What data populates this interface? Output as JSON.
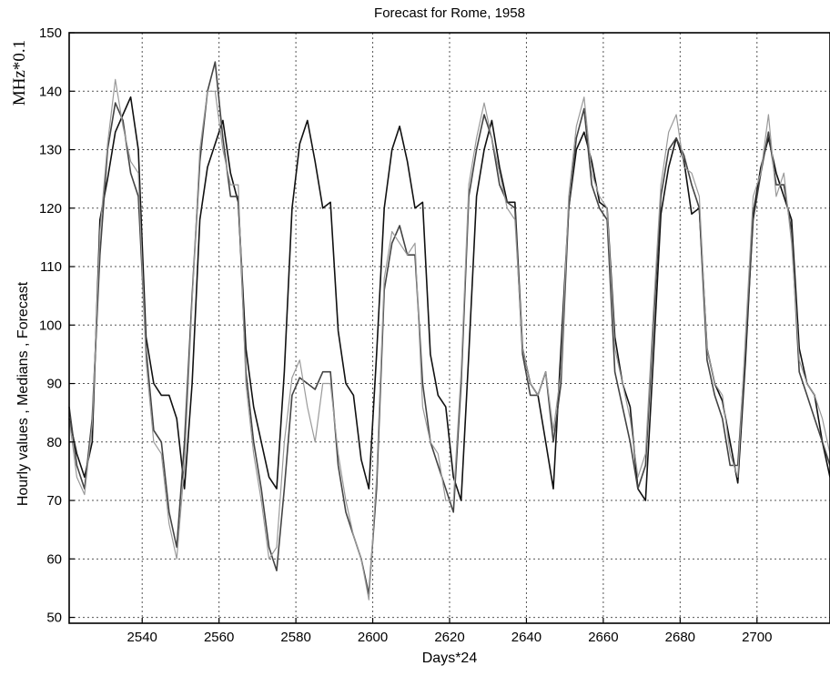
{
  "chart_data": {
    "type": "line",
    "title": "Forecast for Rome, 1958",
    "xlabel": "Days*24",
    "ylabel": "Hourly values , Medians , Forecast",
    "unit_label": "MHz*0.1",
    "xlim": [
      2521,
      2719
    ],
    "ylim": [
      49,
      150
    ],
    "x_ticks": [
      2540,
      2560,
      2580,
      2600,
      2620,
      2640,
      2660,
      2680,
      2700
    ],
    "y_ticks": [
      50,
      60,
      70,
      80,
      90,
      100,
      110,
      120,
      130,
      140,
      150
    ],
    "grid": true,
    "series": [
      {
        "color": "#111111",
        "x": [
          2521,
          2523,
          2525,
          2527,
          2529,
          2531,
          2533,
          2535,
          2537,
          2539,
          2541,
          2543,
          2545,
          2547,
          2549,
          2551,
          2553,
          2555,
          2557,
          2559,
          2561,
          2563,
          2565,
          2567,
          2569,
          2571,
          2573,
          2575,
          2577,
          2579,
          2581,
          2583,
          2585,
          2587,
          2589,
          2591,
          2593,
          2595,
          2597,
          2599,
          2601,
          2603,
          2605,
          2607,
          2609,
          2611,
          2613,
          2615,
          2617,
          2619,
          2621,
          2623,
          2625,
          2627,
          2629,
          2631,
          2633,
          2635,
          2637,
          2639,
          2641,
          2643,
          2645,
          2647,
          2649,
          2651,
          2653,
          2655,
          2657,
          2659,
          2661,
          2663,
          2665,
          2667,
          2669,
          2671,
          2673,
          2675,
          2677,
          2679,
          2681,
          2683,
          2685,
          2687,
          2689,
          2691,
          2693,
          2695,
          2697,
          2699,
          2701,
          2703,
          2705,
          2707,
          2709,
          2711,
          2713,
          2715,
          2717,
          2719
        ],
        "values": [
          84,
          78,
          74,
          80,
          118,
          125,
          133,
          136,
          139,
          130,
          98,
          90,
          88,
          88,
          84,
          72,
          90,
          118,
          127,
          131,
          135,
          126,
          121,
          96,
          86,
          80,
          74,
          72,
          92,
          120,
          131,
          135,
          128,
          120,
          121,
          99,
          90,
          88,
          77,
          72,
          95,
          120,
          130,
          134,
          128,
          120,
          121,
          95,
          88,
          86,
          74,
          70,
          95,
          122,
          130,
          135,
          127,
          121,
          121,
          96,
          90,
          88,
          80,
          72,
          96,
          120,
          130,
          133,
          128,
          121,
          120,
          98,
          90,
          86,
          72,
          70,
          94,
          119,
          127,
          132,
          128,
          119,
          120,
          96,
          90,
          87,
          80,
          73,
          94,
          119,
          127,
          132,
          126,
          122,
          118,
          96,
          90,
          88,
          80,
          74
        ]
      },
      {
        "color": "#444444",
        "x": [
          2521,
          2523,
          2525,
          2527,
          2529,
          2531,
          2533,
          2535,
          2537,
          2539,
          2541,
          2543,
          2545,
          2547,
          2549,
          2551,
          2553,
          2555,
          2557,
          2559,
          2561,
          2563,
          2565,
          2567,
          2569,
          2571,
          2573,
          2575,
          2577,
          2579,
          2581,
          2583,
          2585,
          2587,
          2589,
          2591,
          2593,
          2595,
          2597,
          2599,
          2601,
          2603,
          2605,
          2607,
          2609,
          2611,
          2613,
          2615,
          2617,
          2619,
          2621,
          2623,
          2625,
          2627,
          2629,
          2631,
          2633,
          2635,
          2637,
          2639,
          2641,
          2643,
          2645,
          2647,
          2649,
          2651,
          2653,
          2655,
          2657,
          2659,
          2661,
          2663,
          2665,
          2667,
          2669,
          2671,
          2673,
          2675,
          2677,
          2679,
          2681,
          2683,
          2685,
          2687,
          2689,
          2691,
          2693,
          2695,
          2697,
          2699,
          2701,
          2703,
          2705,
          2707,
          2709,
          2711,
          2713,
          2715,
          2717,
          2719
        ],
        "values": [
          86,
          76,
          72,
          84,
          112,
          130,
          138,
          135,
          126,
          122,
          96,
          82,
          80,
          68,
          62,
          80,
          105,
          128,
          140,
          145,
          132,
          122,
          122,
          92,
          80,
          72,
          62,
          58,
          72,
          88,
          91,
          90,
          89,
          92,
          92,
          76,
          68,
          64,
          60,
          54,
          72,
          106,
          114,
          117,
          112,
          112,
          90,
          80,
          76,
          72,
          68,
          90,
          122,
          130,
          136,
          132,
          124,
          121,
          120,
          95,
          88,
          88,
          92,
          80,
          90,
          120,
          132,
          137,
          124,
          120,
          118,
          92,
          86,
          80,
          72,
          76,
          100,
          122,
          130,
          132,
          129,
          124,
          120,
          94,
          88,
          84,
          76,
          76,
          96,
          118,
          126,
          133,
          124,
          124,
          116,
          92,
          88,
          84,
          80,
          76
        ]
      },
      {
        "color": "#9a9a9a",
        "x": [
          2521,
          2523,
          2525,
          2527,
          2529,
          2531,
          2533,
          2535,
          2537,
          2539,
          2541,
          2543,
          2545,
          2547,
          2549,
          2551,
          2553,
          2555,
          2557,
          2559,
          2561,
          2563,
          2565,
          2567,
          2569,
          2571,
          2573,
          2575,
          2577,
          2579,
          2581,
          2583,
          2585,
          2587,
          2589,
          2591,
          2593,
          2595,
          2597,
          2599,
          2601,
          2603,
          2605,
          2607,
          2609,
          2611,
          2613,
          2615,
          2617,
          2619,
          2621,
          2623,
          2625,
          2627,
          2629,
          2631,
          2633,
          2635,
          2637,
          2639,
          2641,
          2643,
          2645,
          2647,
          2649,
          2651,
          2653,
          2655,
          2657,
          2659,
          2661,
          2663,
          2665,
          2667,
          2669,
          2671,
          2673,
          2675,
          2677,
          2679,
          2681,
          2683,
          2685,
          2687,
          2689,
          2691,
          2693,
          2695,
          2697,
          2699,
          2701,
          2703,
          2705,
          2707,
          2709,
          2711,
          2713,
          2715,
          2717,
          2719
        ],
        "values": [
          84,
          74,
          71,
          83,
          116,
          131,
          142,
          134,
          128,
          126,
          94,
          80,
          78,
          66,
          60,
          76,
          104,
          130,
          140,
          140,
          130,
          124,
          124,
          90,
          78,
          70,
          60,
          62,
          80,
          91,
          94,
          86,
          80,
          90,
          90,
          78,
          70,
          64,
          60,
          53,
          74,
          108,
          116,
          114,
          112,
          114,
          86,
          80,
          78,
          70,
          70,
          92,
          124,
          132,
          138,
          132,
          126,
          120,
          118,
          96,
          90,
          88,
          92,
          82,
          92,
          122,
          134,
          139,
          126,
          122,
          120,
          96,
          90,
          84,
          74,
          78,
          102,
          124,
          133,
          136,
          127,
          126,
          122,
          96,
          90,
          88,
          78,
          74,
          98,
          122,
          126,
          136,
          122,
          126,
          114,
          94,
          90,
          88,
          84,
          78
        ]
      }
    ]
  }
}
